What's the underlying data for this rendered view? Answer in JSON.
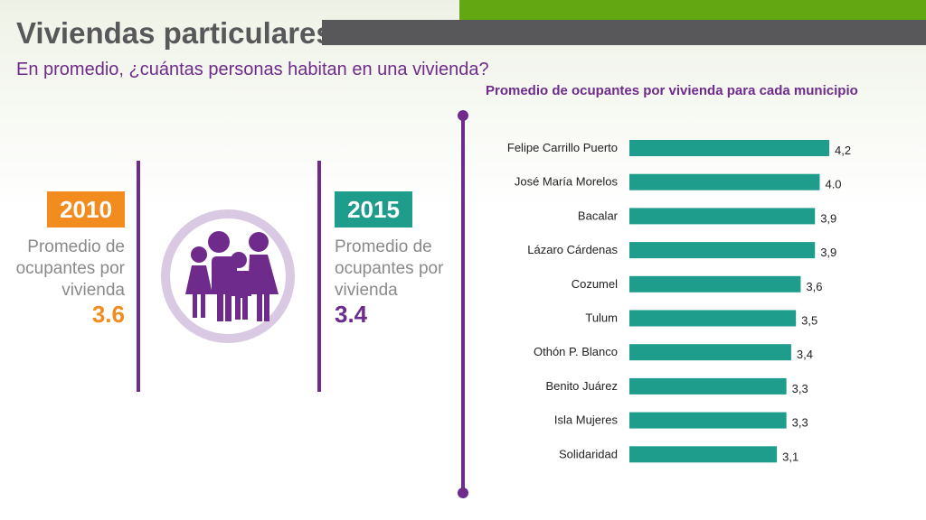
{
  "header": {
    "title": "Viviendas particulares",
    "subtitle": "En promedio, ¿cuántas personas habitan en una vivienda?"
  },
  "left": {
    "y2010": {
      "year": "2010",
      "description_lines": [
        "Promedio de",
        "ocupantes por",
        "vivienda"
      ],
      "value": "3.6",
      "color": "#f28c1e"
    },
    "y2015": {
      "year": "2015",
      "description_lines": [
        "Promedio de",
        "ocupantes por",
        "vivienda"
      ],
      "value": "3.4",
      "color": "#1e9c8c"
    },
    "icon": "family-icon"
  },
  "colors": {
    "purple": "#6f2b8c",
    "teal": "#1e9c8c",
    "orange": "#f28c1e",
    "green": "#63a812",
    "gray": "#58585a"
  },
  "chart_data": {
    "type": "bar",
    "orientation": "horizontal",
    "title": "Promedio de ocupantes por vivienda para cada municipio",
    "categories": [
      "Felipe Carrillo Puerto",
      "José María Morelos",
      "Bacalar",
      "Lázaro Cárdenas",
      "Cozumel",
      "Tulum",
      "Othón P. Blanco",
      "Benito Juárez",
      "Isla Mujeres",
      "Solidaridad"
    ],
    "values": [
      4.2,
      4.0,
      3.9,
      3.9,
      3.6,
      3.5,
      3.4,
      3.3,
      3.3,
      3.1
    ],
    "value_labels": [
      "4,2",
      "4.0",
      "3,9",
      "3,9",
      "3,6",
      "3,5",
      "3,4",
      "3,3",
      "3,3",
      "3,1"
    ],
    "xlim": [
      0,
      4.2
    ],
    "grid": false,
    "bar_color": "#1e9c8c"
  }
}
